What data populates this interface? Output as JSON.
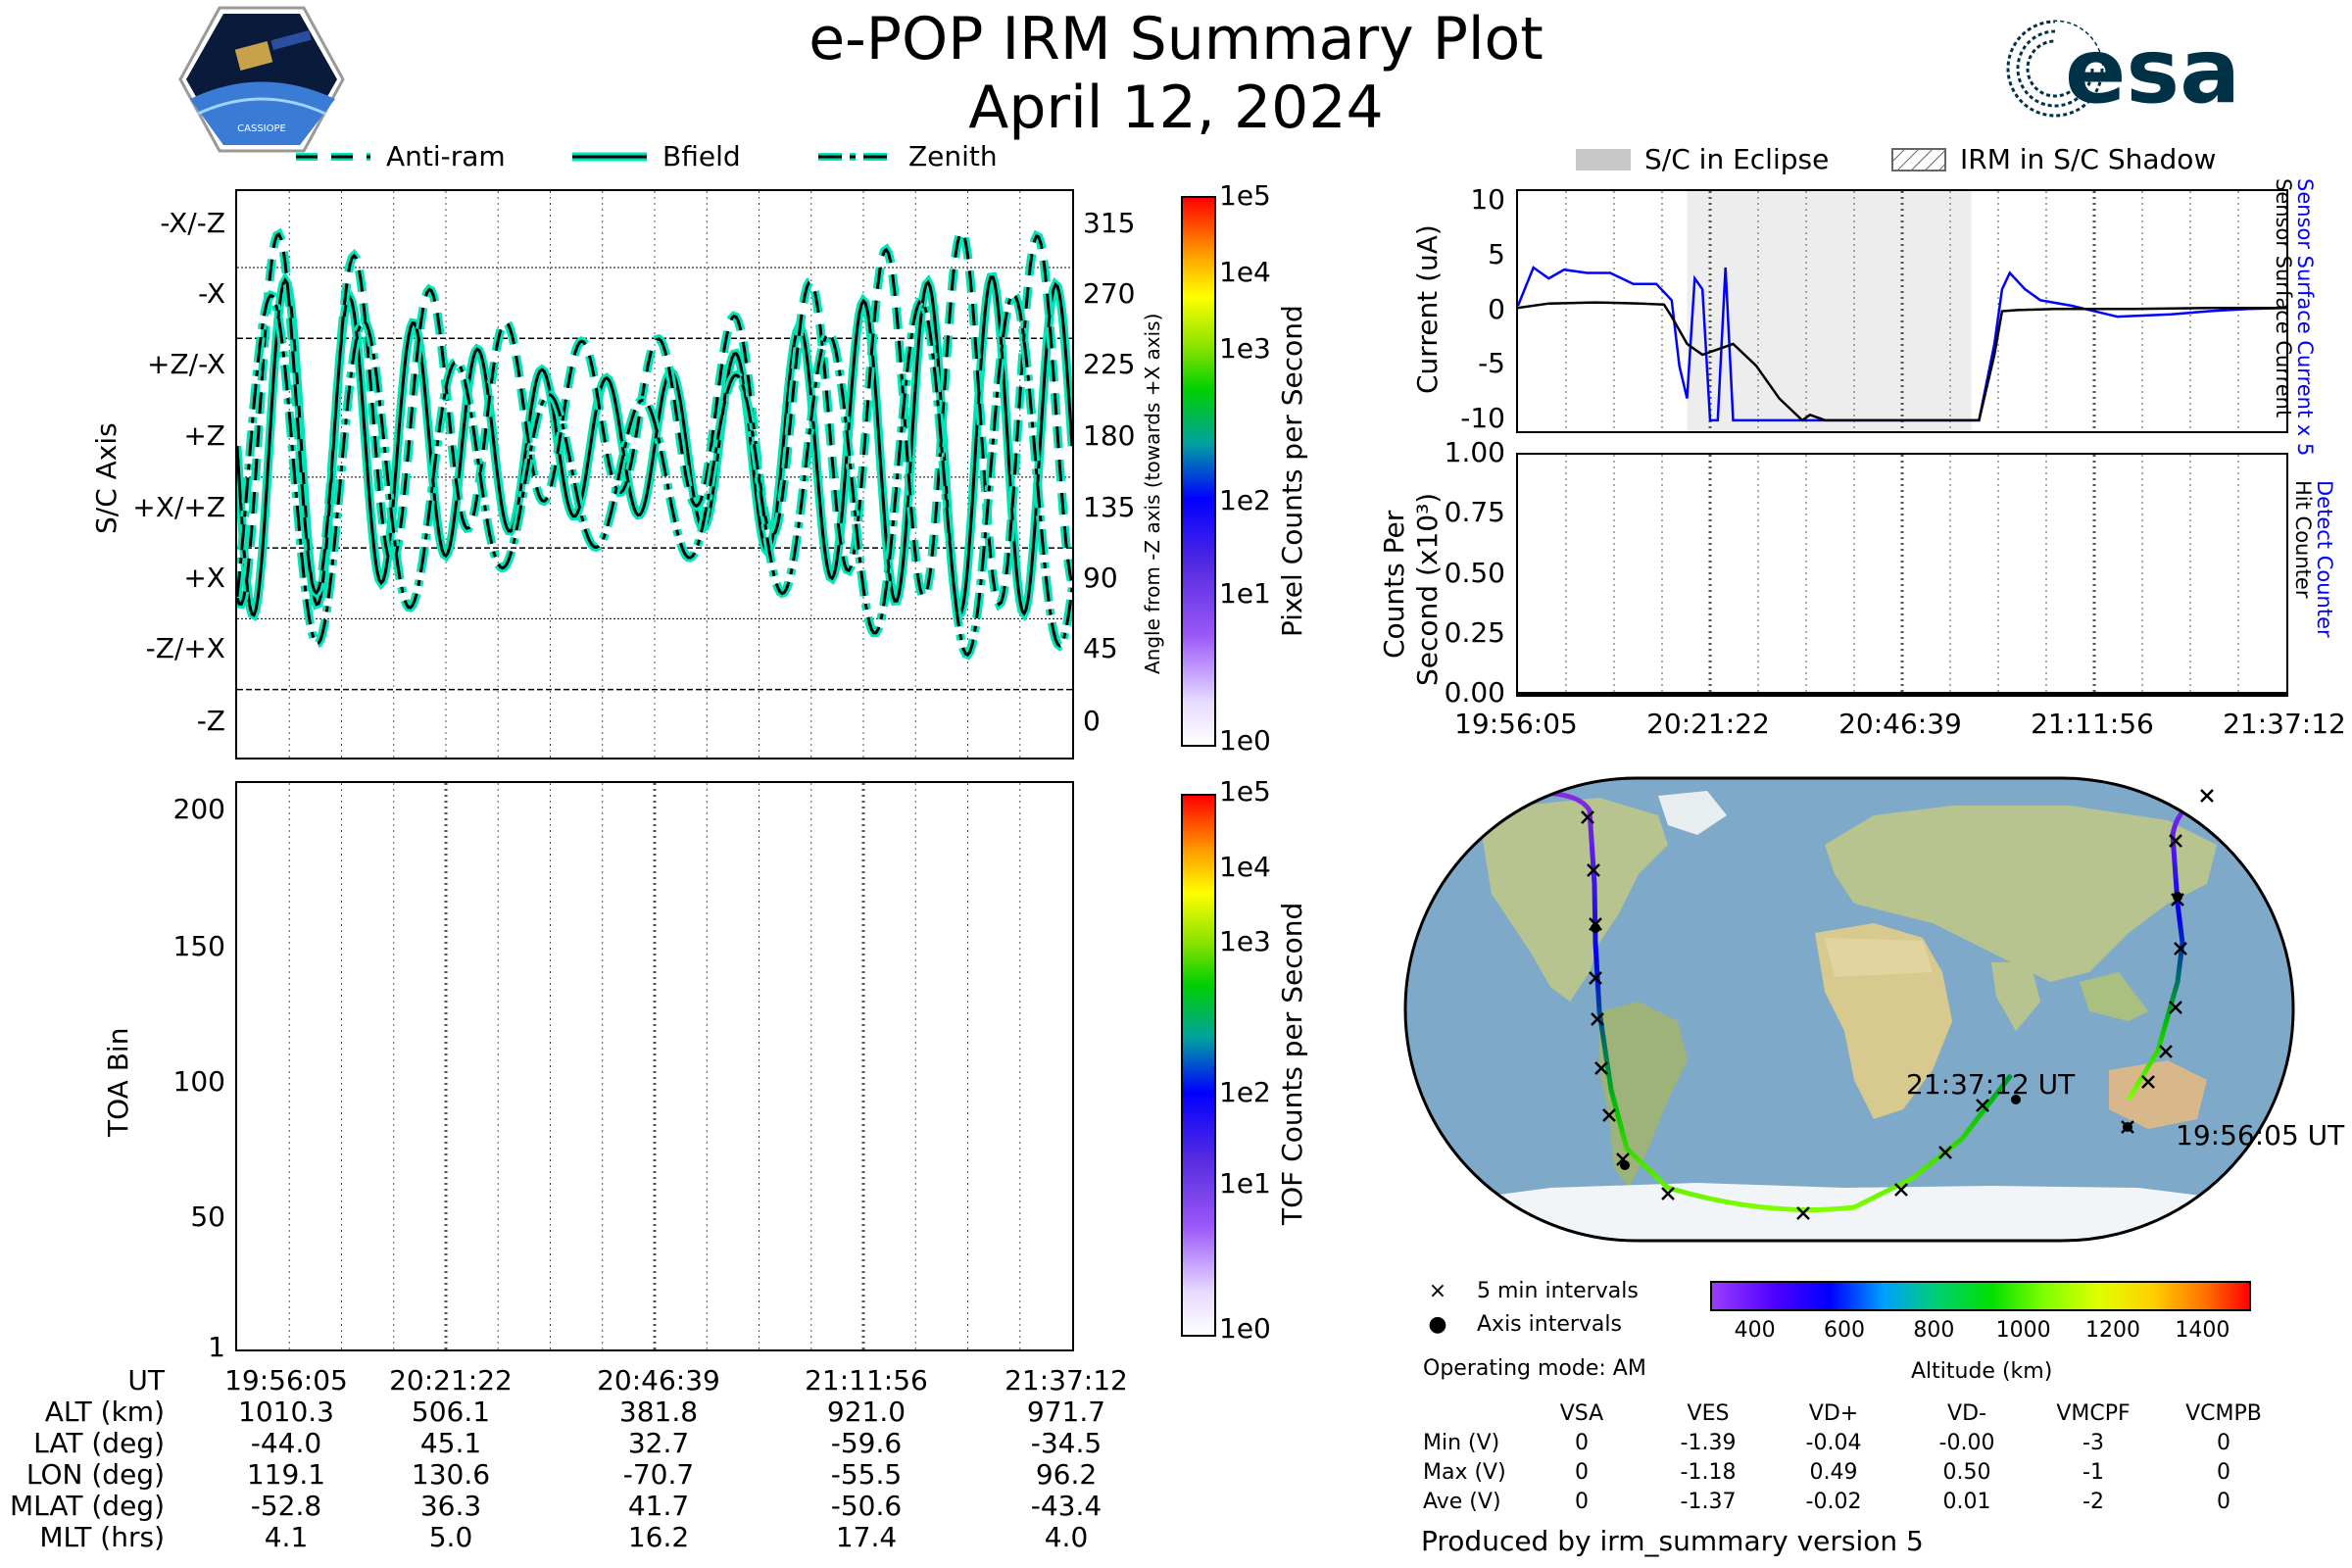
{
  "title": {
    "line1": "e-POP IRM Summary Plot",
    "line2": "April 12, 2024"
  },
  "logos": {
    "left_text": "CASSIOPE",
    "right_text": "esa",
    "right_color": "#003247"
  },
  "colors": {
    "trace_fill": "#00e5b8",
    "trace_edge": "#000000",
    "sensor": "#0000ff",
    "map_ocean": "#7fa9c9",
    "map_land": "#b7c48f"
  },
  "legend_top": {
    "anti_ram": "Anti-ram",
    "bfield": "Bfield",
    "zenith": "Zenith"
  },
  "legend_right": {
    "eclipse": "S/C in Eclipse",
    "shadow": "IRM in S/C Shadow"
  },
  "axis_panel": {
    "ylabel": "S/C Axis",
    "yticks": [
      "-X/-Z",
      "-X",
      "+Z/-X",
      "+Z",
      "+X/+Z",
      "+X",
      "-Z/+X",
      "-Z"
    ],
    "angle_ticks": [
      "315",
      "270",
      "225",
      "180",
      "135",
      "90",
      "45",
      "0"
    ],
    "angle_label": "Angle from -Z axis (towards +X axis)",
    "cbar_label": "Pixel Counts per Second",
    "cbar_ticks": [
      "1e5",
      "1e4",
      "1e3",
      "1e2",
      "1e1",
      "1e0"
    ]
  },
  "toa_panel": {
    "ylabel": "TOA Bin",
    "yticks": [
      "200",
      "150",
      "100",
      "50",
      "1"
    ],
    "cbar_label": "TOF Counts per Second",
    "cbar_ticks": [
      "1e5",
      "1e4",
      "1e3",
      "1e2",
      "1e1",
      "1e0"
    ]
  },
  "current_panel": {
    "ylabel": "Current (uA)",
    "yticks": [
      "10",
      "5",
      "0",
      "-5",
      "-10"
    ],
    "right_label_blue": "Sensor Surface Current x 5",
    "right_label_black": "Sensor Surface Current"
  },
  "counts_panel": {
    "ylabel1": "Counts Per",
    "ylabel2": "Second (x10³)",
    "yticks": [
      "1.00",
      "0.75",
      "0.50",
      "0.25",
      "0.00"
    ],
    "right_label_blue": "Detect Counter",
    "right_label_black": "Hit Counter"
  },
  "time_ticks": [
    "19:56:05",
    "20:21:22",
    "20:46:39",
    "21:11:56",
    "21:37:12"
  ],
  "ephemeris": {
    "rows": [
      {
        "label": "UT",
        "values": [
          "19:56:05",
          "20:21:22",
          "20:46:39",
          "21:11:56",
          "21:37:12"
        ]
      },
      {
        "label": "ALT (km)",
        "values": [
          "1010.3",
          "506.1",
          "381.8",
          "921.0",
          "971.7"
        ]
      },
      {
        "label": "LAT (deg)",
        "values": [
          "-44.0",
          "45.1",
          "32.7",
          "-59.6",
          "-34.5"
        ]
      },
      {
        "label": "LON (deg)",
        "values": [
          "119.1",
          "130.6",
          "-70.7",
          "-55.5",
          "96.2"
        ]
      },
      {
        "label": "MLAT (deg)",
        "values": [
          "-52.8",
          "36.3",
          "41.7",
          "-50.6",
          "-43.4"
        ]
      },
      {
        "label": "MLT (hrs)",
        "values": [
          "4.1",
          "5.0",
          "16.2",
          "17.4",
          "4.0"
        ]
      }
    ]
  },
  "map": {
    "start_label": "19:56:05 UT",
    "end_label": "21:37:12 UT",
    "legend_5min": "5 min intervals",
    "legend_axis": "Axis intervals",
    "operating_mode": "Operating mode: AM",
    "alt_label": "Altitude (km)",
    "alt_ticks": [
      "400",
      "600",
      "800",
      "1000",
      "1200",
      "1400"
    ]
  },
  "voltages": {
    "columns": [
      "VSA",
      "VES",
      "VD+",
      "VD-",
      "VMCPF",
      "VCMPB"
    ],
    "rows": [
      {
        "label": "Min (V)",
        "values": [
          "0",
          "-1.39",
          "-0.04",
          "-0.00",
          "-3",
          "0"
        ]
      },
      {
        "label": "Max (V)",
        "values": [
          "0",
          "-1.18",
          "0.49",
          "0.50",
          "-1",
          "0"
        ]
      },
      {
        "label": "Ave (V)",
        "values": [
          "0",
          "-1.37",
          "-0.02",
          "0.01",
          "-2",
          "0"
        ]
      }
    ]
  },
  "footer": "Produced by irm_summary version 5",
  "chart_data": [
    {
      "type": "line",
      "title": "",
      "ylabel": "Current (uA)",
      "ylim": [
        -11,
        11
      ],
      "series": [
        {
          "name": "Sensor Surface Current x 5",
          "color": "#0000ff",
          "x": [
            0,
            0.02,
            0.04,
            0.06,
            0.09,
            0.12,
            0.15,
            0.18,
            0.2,
            0.21,
            0.22,
            0.23,
            0.24,
            0.25,
            0.26,
            0.27,
            0.28,
            0.29,
            0.3,
            0.31,
            0.32,
            0.37,
            0.39,
            0.41,
            0.45,
            0.5,
            0.55,
            0.6,
            0.62,
            0.63,
            0.64,
            0.66,
            0.68,
            0.72,
            0.78,
            0.85,
            0.9,
            0.95,
            1.0
          ],
          "y": [
            0.5,
            4,
            3,
            3.8,
            3.5,
            3.5,
            2.5,
            2.5,
            1,
            -5,
            -8,
            3,
            2,
            -10,
            -10,
            4,
            -10,
            -10,
            -10,
            -10,
            -10,
            -10,
            -10,
            -10,
            -10,
            -10,
            -10,
            -10,
            -3,
            2,
            3.5,
            2,
            1,
            0.5,
            -0.5,
            -0.3,
            0,
            0.2,
            0.3
          ]
        },
        {
          "name": "Sensor Surface Current",
          "color": "#000000",
          "x": [
            0,
            0.04,
            0.1,
            0.16,
            0.19,
            0.2,
            0.22,
            0.24,
            0.28,
            0.31,
            0.34,
            0.37,
            0.38,
            0.4,
            0.45,
            0.5,
            0.55,
            0.6,
            0.62,
            0.63,
            0.65,
            0.7,
            0.8,
            0.9,
            1.0
          ],
          "y": [
            0.3,
            0.7,
            0.8,
            0.7,
            0.6,
            -0.5,
            -3,
            -4,
            -3,
            -5,
            -8,
            -10,
            -9.5,
            -10,
            -10,
            -10,
            -10,
            -10,
            -4,
            0,
            0.1,
            0.2,
            0.2,
            0.3,
            0.3
          ]
        }
      ]
    },
    {
      "type": "line",
      "title": "",
      "ylabel": "Counts Per Second (x10³)",
      "ylim": [
        0,
        1
      ],
      "series": [
        {
          "name": "Detect Counter",
          "color": "#0000ff",
          "x": [
            0,
            1
          ],
          "y": [
            0,
            0
          ]
        },
        {
          "name": "Hit Counter",
          "color": "#000000",
          "x": [
            0,
            1
          ],
          "y": [
            0,
            0
          ]
        }
      ]
    }
  ]
}
